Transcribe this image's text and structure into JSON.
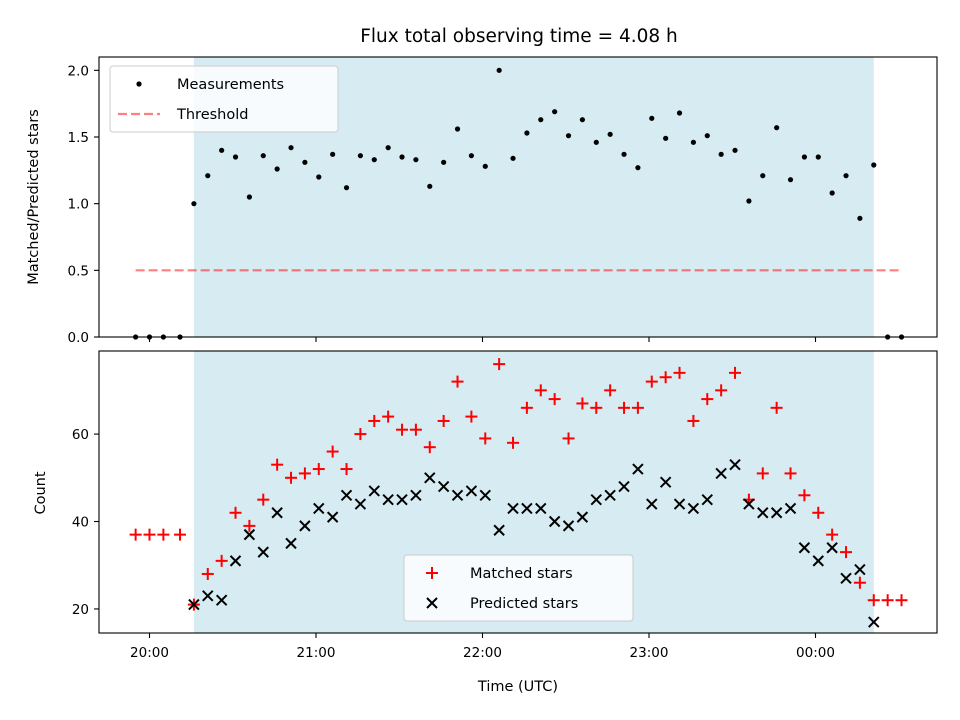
{
  "chart_data": {
    "title": "Flux total observing time = 4.08 h",
    "xlabel": "Time (UTC)",
    "x_ticks": [
      "20:00",
      "21:00",
      "22:00",
      "23:00",
      "00:00"
    ],
    "shaded_span": {
      "start": "20:16",
      "end": "00:21",
      "color": "#add8e6"
    },
    "panels": [
      {
        "type": "scatter",
        "ylabel": "Matched/Predicted stars",
        "ylim": [
          0,
          2.1
        ],
        "y_ticks": [
          "0.0",
          "0.5",
          "1.0",
          "1.5",
          "2.0"
        ],
        "legend": {
          "placement": "upper left",
          "entries": [
            "Measurements",
            "Threshold"
          ]
        },
        "series": [
          {
            "name": "Measurements",
            "marker": "dot",
            "color": "#000000",
            "points": [
              [
                "19:55",
                0.0
              ],
              [
                "20:00",
                0.0
              ],
              [
                "20:05",
                0.0
              ],
              [
                "20:11",
                0.0
              ],
              [
                "20:16",
                1.0
              ],
              [
                "20:21",
                1.21
              ],
              [
                "20:26",
                1.4
              ],
              [
                "20:31",
                1.35
              ],
              [
                "20:36",
                1.05
              ],
              [
                "20:41",
                1.36
              ],
              [
                "20:46",
                1.26
              ],
              [
                "20:51",
                1.42
              ],
              [
                "20:56",
                1.31
              ],
              [
                "21:01",
                1.2
              ],
              [
                "21:06",
                1.37
              ],
              [
                "21:11",
                1.12
              ],
              [
                "21:16",
                1.36
              ],
              [
                "21:21",
                1.33
              ],
              [
                "21:26",
                1.42
              ],
              [
                "21:31",
                1.35
              ],
              [
                "21:36",
                1.33
              ],
              [
                "21:41",
                1.13
              ],
              [
                "21:46",
                1.31
              ],
              [
                "21:51",
                1.56
              ],
              [
                "21:56",
                1.36
              ],
              [
                "22:01",
                1.28
              ],
              [
                "22:06",
                2.0
              ],
              [
                "22:11",
                1.34
              ],
              [
                "22:16",
                1.53
              ],
              [
                "22:21",
                1.63
              ],
              [
                "22:26",
                1.69
              ],
              [
                "22:31",
                1.51
              ],
              [
                "22:36",
                1.63
              ],
              [
                "22:41",
                1.46
              ],
              [
                "22:46",
                1.52
              ],
              [
                "22:51",
                1.37
              ],
              [
                "22:56",
                1.27
              ],
              [
                "23:01",
                1.64
              ],
              [
                "23:06",
                1.49
              ],
              [
                "23:11",
                1.68
              ],
              [
                "23:16",
                1.46
              ],
              [
                "23:21",
                1.51
              ],
              [
                "23:26",
                1.37
              ],
              [
                "23:31",
                1.4
              ],
              [
                "23:36",
                1.02
              ],
              [
                "23:41",
                1.21
              ],
              [
                "23:46",
                1.57
              ],
              [
                "23:51",
                1.18
              ],
              [
                "23:56",
                1.35
              ],
              [
                "00:01",
                1.35
              ],
              [
                "00:06",
                1.08
              ],
              [
                "00:11",
                1.21
              ],
              [
                "00:16",
                0.89
              ],
              [
                "00:21",
                1.29
              ],
              [
                "00:26",
                0.0
              ],
              [
                "00:31",
                0.0
              ]
            ]
          },
          {
            "name": "Threshold",
            "type": "line",
            "style": "dashed",
            "color": "#ff0000",
            "opacity": 0.5,
            "points": [
              [
                "19:55",
                0.5
              ],
              [
                "00:31",
                0.5
              ]
            ]
          }
        ]
      },
      {
        "type": "scatter",
        "ylabel": "Count",
        "ylim": [
          14.5,
          79
        ],
        "y_ticks": [
          "20",
          "40",
          "60"
        ],
        "legend": {
          "placement": "lower center",
          "entries": [
            "Matched stars",
            "Predicted stars"
          ]
        },
        "series": [
          {
            "name": "Matched stars",
            "marker": "plus",
            "color": "#ff0000",
            "points": [
              [
                "19:55",
                37
              ],
              [
                "20:00",
                37
              ],
              [
                "20:05",
                37
              ],
              [
                "20:11",
                37
              ],
              [
                "20:16",
                21
              ],
              [
                "20:21",
                28
              ],
              [
                "20:26",
                31
              ],
              [
                "20:31",
                42
              ],
              [
                "20:36",
                39
              ],
              [
                "20:41",
                45
              ],
              [
                "20:46",
                53
              ],
              [
                "20:51",
                50
              ],
              [
                "20:56",
                51
              ],
              [
                "21:01",
                52
              ],
              [
                "21:06",
                56
              ],
              [
                "21:11",
                52
              ],
              [
                "21:16",
                60
              ],
              [
                "21:21",
                63
              ],
              [
                "21:26",
                64
              ],
              [
                "21:31",
                61
              ],
              [
                "21:36",
                61
              ],
              [
                "21:41",
                57
              ],
              [
                "21:46",
                63
              ],
              [
                "21:51",
                72
              ],
              [
                "21:56",
                64
              ],
              [
                "22:01",
                59
              ],
              [
                "22:06",
                76
              ],
              [
                "22:11",
                58
              ],
              [
                "22:16",
                66
              ],
              [
                "22:21",
                70
              ],
              [
                "22:26",
                68
              ],
              [
                "22:31",
                59
              ],
              [
                "22:36",
                67
              ],
              [
                "22:41",
                66
              ],
              [
                "22:46",
                70
              ],
              [
                "22:51",
                66
              ],
              [
                "22:56",
                66
              ],
              [
                "23:01",
                72
              ],
              [
                "23:06",
                73
              ],
              [
                "23:11",
                74
              ],
              [
                "23:16",
                63
              ],
              [
                "23:21",
                68
              ],
              [
                "23:26",
                70
              ],
              [
                "23:31",
                74
              ],
              [
                "23:36",
                45
              ],
              [
                "23:41",
                51
              ],
              [
                "23:46",
                66
              ],
              [
                "23:51",
                51
              ],
              [
                "23:56",
                46
              ],
              [
                "00:01",
                42
              ],
              [
                "00:06",
                37
              ],
              [
                "00:11",
                33
              ],
              [
                "00:16",
                26
              ],
              [
                "00:21",
                22
              ],
              [
                "00:26",
                22
              ],
              [
                "00:31",
                22
              ]
            ]
          },
          {
            "name": "Predicted stars",
            "marker": "x",
            "color": "#000000",
            "points": [
              [
                "20:16",
                21
              ],
              [
                "20:21",
                23
              ],
              [
                "20:26",
                22
              ],
              [
                "20:31",
                31
              ],
              [
                "20:36",
                37
              ],
              [
                "20:41",
                33
              ],
              [
                "20:46",
                42
              ],
              [
                "20:51",
                35
              ],
              [
                "20:56",
                39
              ],
              [
                "21:01",
                43
              ],
              [
                "21:06",
                41
              ],
              [
                "21:11",
                46
              ],
              [
                "21:16",
                44
              ],
              [
                "21:21",
                47
              ],
              [
                "21:26",
                45
              ],
              [
                "21:31",
                45
              ],
              [
                "21:36",
                46
              ],
              [
                "21:41",
                50
              ],
              [
                "21:46",
                48
              ],
              [
                "21:51",
                46
              ],
              [
                "21:56",
                47
              ],
              [
                "22:01",
                46
              ],
              [
                "22:06",
                38
              ],
              [
                "22:11",
                43
              ],
              [
                "22:16",
                43
              ],
              [
                "22:21",
                43
              ],
              [
                "22:26",
                40
              ],
              [
                "22:31",
                39
              ],
              [
                "22:36",
                41
              ],
              [
                "22:41",
                45
              ],
              [
                "22:46",
                46
              ],
              [
                "22:51",
                48
              ],
              [
                "22:56",
                52
              ],
              [
                "23:01",
                44
              ],
              [
                "23:06",
                49
              ],
              [
                "23:11",
                44
              ],
              [
                "23:16",
                43
              ],
              [
                "23:21",
                45
              ],
              [
                "23:26",
                51
              ],
              [
                "23:31",
                53
              ],
              [
                "23:36",
                44
              ],
              [
                "23:41",
                42
              ],
              [
                "23:46",
                42
              ],
              [
                "23:51",
                43
              ],
              [
                "23:56",
                34
              ],
              [
                "00:01",
                31
              ],
              [
                "00:06",
                34
              ],
              [
                "00:11",
                27
              ],
              [
                "00:16",
                29
              ],
              [
                "00:21",
                17
              ]
            ]
          }
        ]
      }
    ]
  }
}
